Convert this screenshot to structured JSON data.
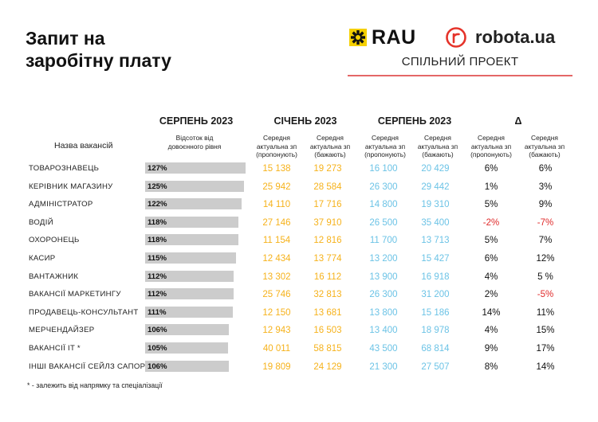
{
  "title_line1": "Запит на",
  "title_line2": "заробітну плату",
  "logos": {
    "rau": "RAU",
    "robota": "robota.ua",
    "joint": "СПІЛЬНИЙ ПРОЕКТ"
  },
  "headers": {
    "aug1": "СЕРПЕНЬ 2023",
    "jan": "СІЧЕНЬ 2023",
    "aug2": "СЕРПЕНЬ 2023",
    "delta": "Δ"
  },
  "subheaders": {
    "name": "Назва вакансій",
    "ratio": "Відсоток від довоєнного рівня",
    "offer": "Середня актуальна зп (пропонують)",
    "want": "Середня актуальна зп (бажають)"
  },
  "rows": [
    {
      "name": "ТОВАРОЗНАВЕЦЬ",
      "pct": "127%",
      "pct_value": 127,
      "j_offer": "15 138",
      "j_want": "19 273",
      "a_offer": "16 100",
      "a_want": "20 429",
      "d_offer": "6%",
      "d_want": "6%"
    },
    {
      "name": "КЕРІВНИК МАГАЗИНУ",
      "pct": "125%",
      "pct_value": 125,
      "j_offer": "25 942",
      "j_want": "28 584",
      "a_offer": "26 300",
      "a_want": "29 442",
      "d_offer": "1%",
      "d_want": "3%"
    },
    {
      "name": "АДМІНІСТРАТОР",
      "pct": "122%",
      "pct_value": 122,
      "j_offer": "14 110",
      "j_want": "17 716",
      "a_offer": "14 800",
      "a_want": "19 310",
      "d_offer": "5%",
      "d_want": "9%"
    },
    {
      "name": "ВОДІЙ",
      "pct": "118%",
      "pct_value": 118,
      "j_offer": "27 146",
      "j_want": "37 910",
      "a_offer": "26 500",
      "a_want": "35 400",
      "d_offer": "-2%",
      "d_want": "-7%"
    },
    {
      "name": "ОХОРОНЕЦЬ",
      "pct": "118%",
      "pct_value": 118,
      "j_offer": "11 154",
      "j_want": "12 816",
      "a_offer": "11 700",
      "a_want": "13 713",
      "d_offer": "5%",
      "d_want": "7%"
    },
    {
      "name": "КАСИР",
      "pct": "115%",
      "pct_value": 115,
      "j_offer": "12 434",
      "j_want": "13 774",
      "a_offer": "13 200",
      "a_want": "15 427",
      "d_offer": "6%",
      "d_want": "12%"
    },
    {
      "name": "ВАНТАЖНИК",
      "pct": "112%",
      "pct_value": 112,
      "j_offer": "13 302",
      "j_want": "16 112",
      "a_offer": "13 900",
      "a_want": "16 918",
      "d_offer": "4%",
      "d_want": "5 %"
    },
    {
      "name": "ВАКАНСІЇ МАРКЕТИНГУ",
      "pct": "112%",
      "pct_value": 112,
      "j_offer": "25 746",
      "j_want": "32 813",
      "a_offer": "26 300",
      "a_want": "31 200",
      "d_offer": "2%",
      "d_want": "-5%"
    },
    {
      "name": "ПРОДАВЕЦЬ-КОНСУЛЬТАНТ",
      "pct": "111%",
      "pct_value": 111,
      "j_offer": "12 150",
      "j_want": "13 681",
      "a_offer": "13 800",
      "a_want": "15 186",
      "d_offer": "14%",
      "d_want": "11%"
    },
    {
      "name": "МЕРЧЕНДАЙЗЕР",
      "pct": "106%",
      "pct_value": 106,
      "j_offer": "12 943",
      "j_want": "16 503",
      "a_offer": "13 400",
      "a_want": "18 978",
      "d_offer": "4%",
      "d_want": "15%"
    },
    {
      "name": "ВАКАНСІЇ IT *",
      "pct": "105%",
      "pct_value": 105,
      "j_offer": "40 011",
      "j_want": "58 815",
      "a_offer": "43 500",
      "a_want": "68 814",
      "d_offer": "9%",
      "d_want": "17%"
    },
    {
      "name": "ІНШІ ВАКАНСІЇ СЕЙЛЗ САПОРТ",
      "pct": "106%",
      "pct_value": 106,
      "j_offer": "19 809",
      "j_want": "24 129",
      "a_offer": "21 300",
      "a_want": "27 507",
      "d_offer": "8%",
      "d_want": "14%"
    }
  ],
  "footnote": "* - залежить від напрямку та спеціалізації",
  "colors": {
    "jan": "#f6b21b",
    "aug": "#6cc3e6",
    "negative": "#e02b2b",
    "bar": "#cccccc",
    "accent": "#e46767",
    "rau_yellow": "#f5d000"
  }
}
